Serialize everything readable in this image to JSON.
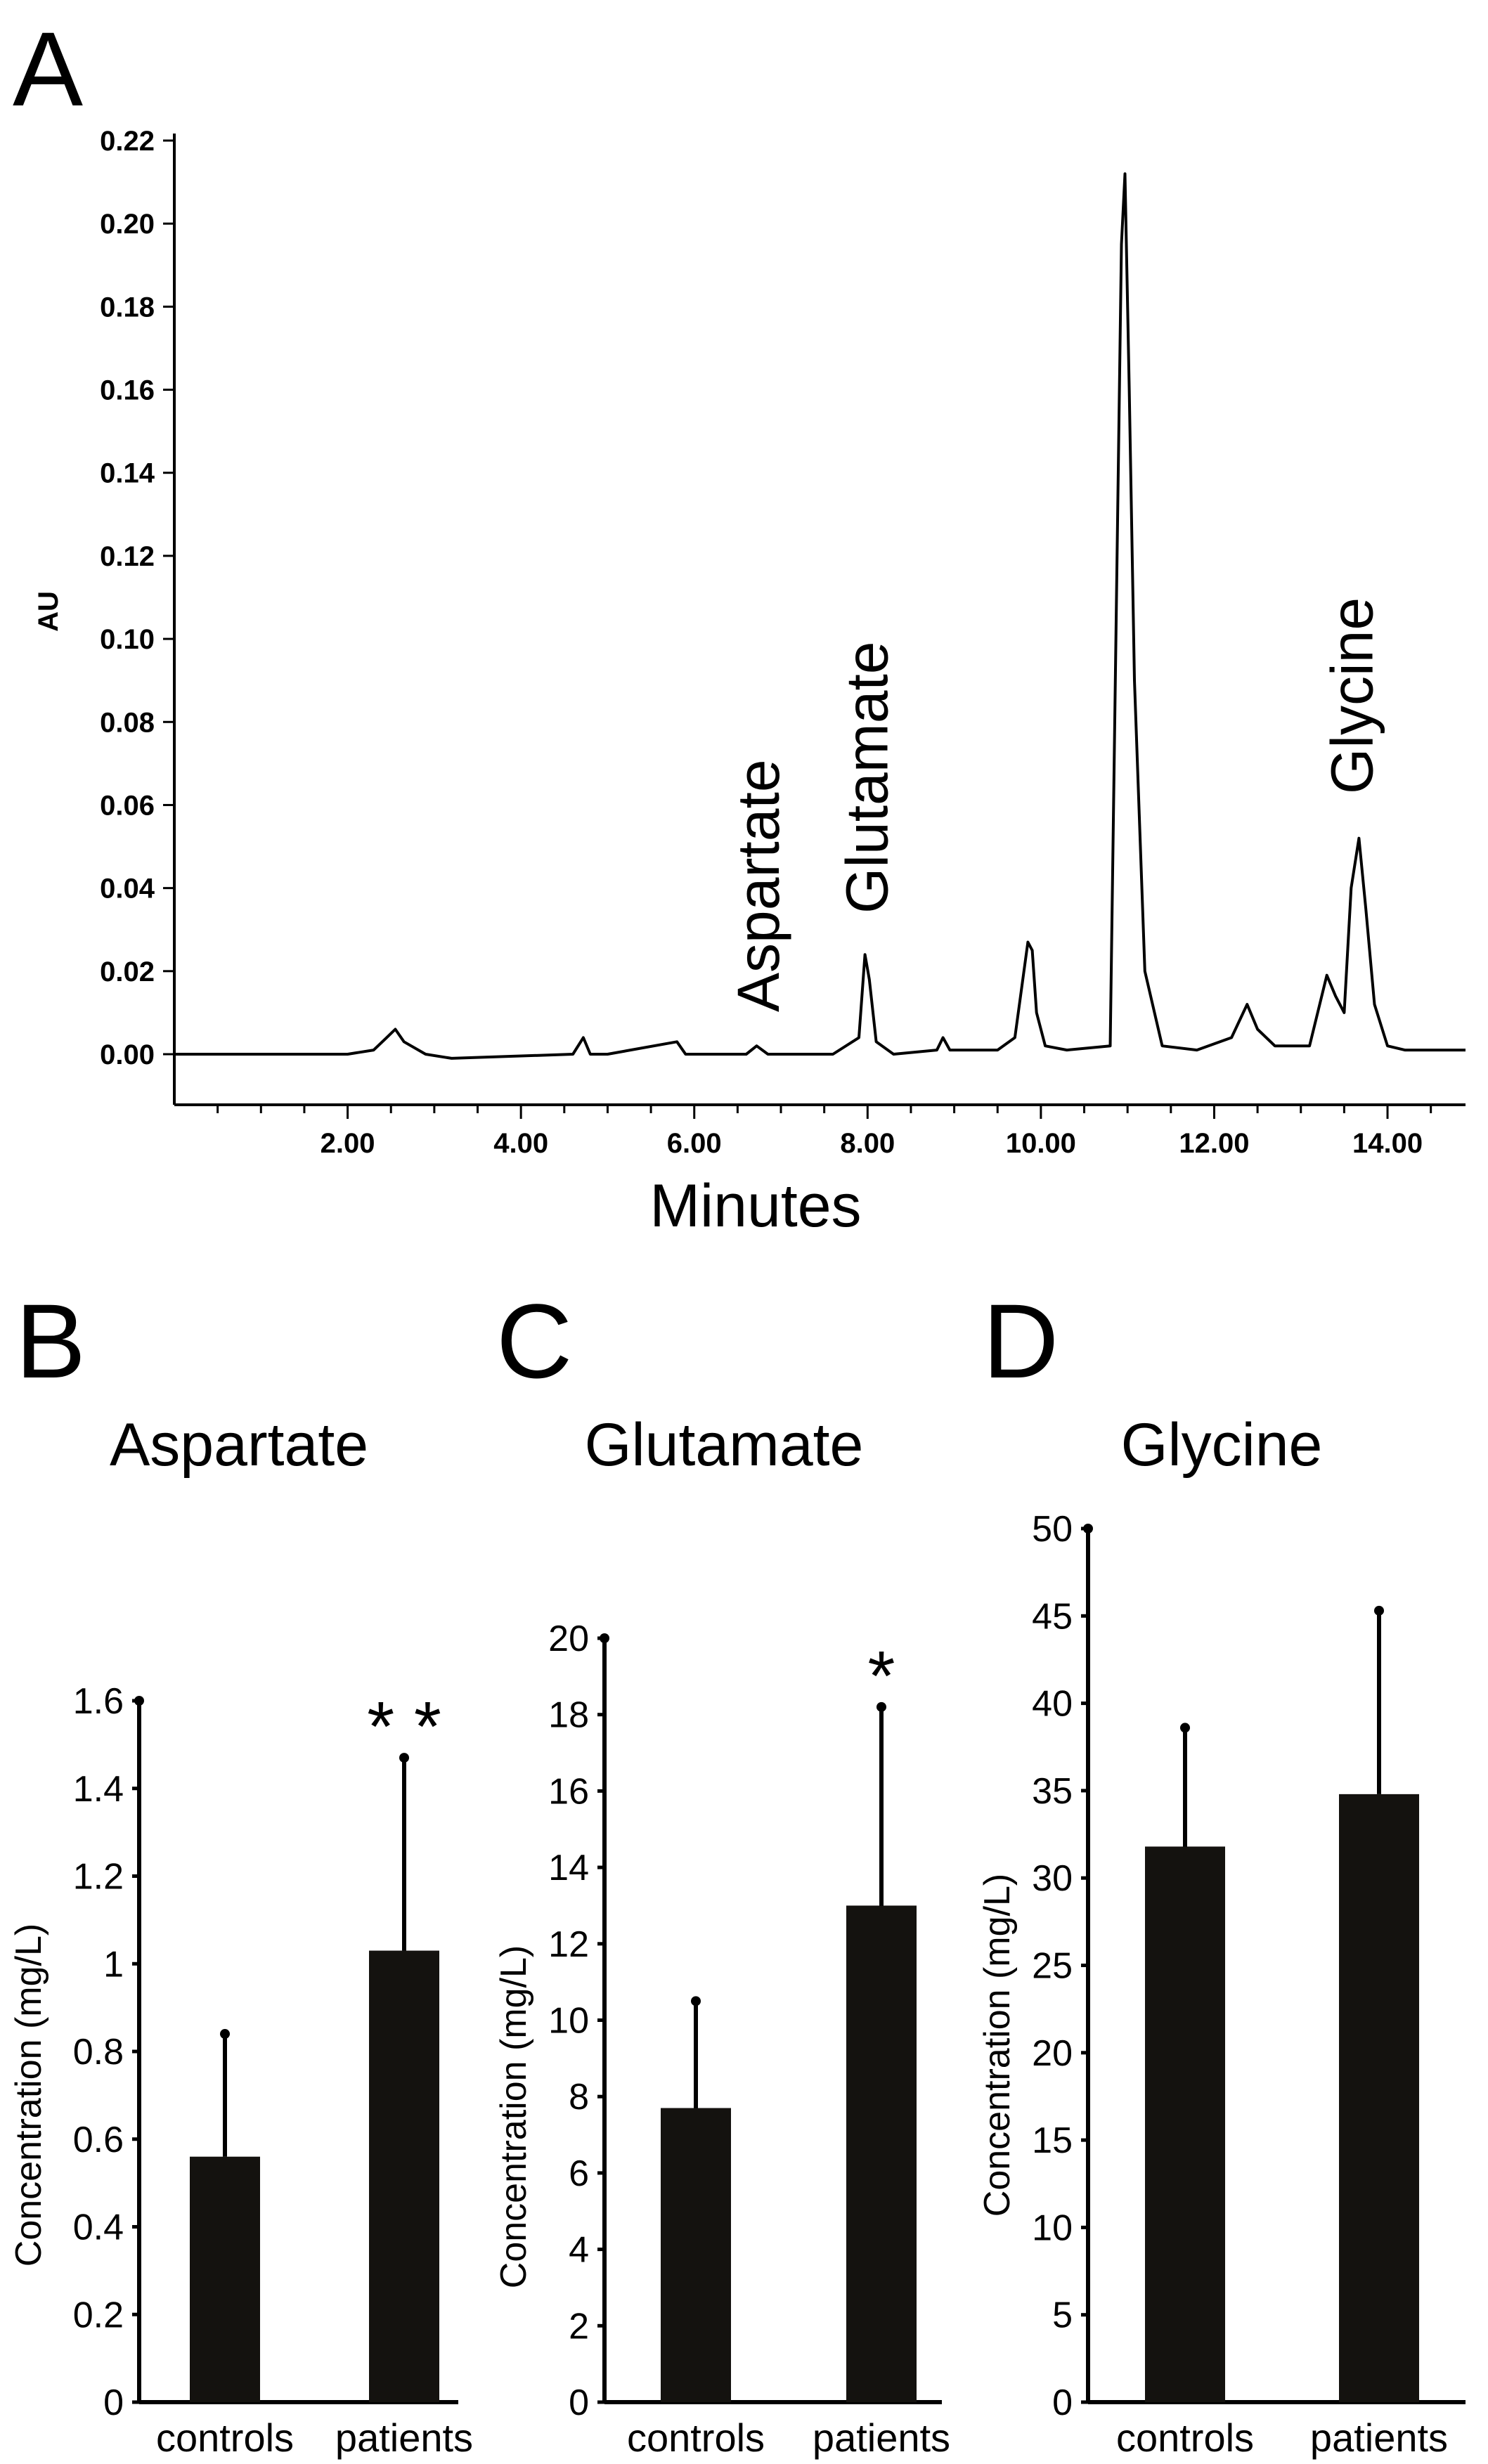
{
  "panels": {
    "A": {
      "letter": "A",
      "chart_data": {
        "type": "line",
        "xlabel": "Minutes",
        "ylabel": "AU",
        "xlim": [
          0.0,
          14.9
        ],
        "ylim": [
          -0.012,
          0.225
        ],
        "x_ticks": [
          "2.00",
          "4.00",
          "6.00",
          "8.00",
          "10.00",
          "12.00",
          "14.00"
        ],
        "y_ticks": [
          "0.00",
          "0.02",
          "0.04",
          "0.06",
          "0.08",
          "0.10",
          "0.12",
          "0.14",
          "0.16",
          "0.18",
          "0.20",
          "0.22"
        ],
        "annotations": [
          {
            "text": "Aspartate",
            "x": 6.75
          },
          {
            "text": "Glutamate",
            "x": 8.0
          },
          {
            "text": "Glycine",
            "x": 13.6
          }
        ],
        "series": [
          {
            "x": [
              0.0,
              2.0,
              2.3,
              2.45,
              2.55,
              2.65,
              2.9,
              3.2,
              4.6,
              4.72,
              4.8,
              5.0,
              5.8,
              5.9,
              6.0,
              6.6,
              6.72,
              6.85,
              7.6,
              7.9,
              7.97,
              8.02,
              8.1,
              8.3,
              8.8,
              8.87,
              8.95,
              9.5,
              9.7,
              9.85,
              9.9,
              9.95,
              10.05,
              10.3,
              10.8,
              10.93,
              10.97,
              11.02,
              11.08,
              11.2,
              11.4,
              11.8,
              12.2,
              12.38,
              12.5,
              12.7,
              13.1,
              13.3,
              13.4,
              13.5,
              13.58,
              13.67,
              13.75,
              13.85,
              14.0,
              14.2,
              14.9
            ],
            "y": [
              0.0,
              0.0,
              0.001,
              0.004,
              0.006,
              0.003,
              0.0,
              -0.001,
              0.0,
              0.004,
              0.0,
              0.0,
              0.003,
              0.0,
              0.0,
              0.0,
              0.002,
              0.0,
              0.0,
              0.004,
              0.024,
              0.018,
              0.003,
              0.0,
              0.001,
              0.004,
              0.001,
              0.001,
              0.004,
              0.027,
              0.025,
              0.01,
              0.002,
              0.001,
              0.002,
              0.195,
              0.212,
              0.16,
              0.09,
              0.02,
              0.002,
              0.001,
              0.004,
              0.012,
              0.006,
              0.002,
              0.002,
              0.019,
              0.014,
              0.01,
              0.04,
              0.052,
              0.035,
              0.012,
              0.002,
              0.001,
              0.001
            ]
          }
        ]
      }
    },
    "B": {
      "letter": "B",
      "chart_data": {
        "type": "bar",
        "title": "Aspartate",
        "ylabel": "Concentration (mg/L)",
        "categories": [
          "controls",
          "patients"
        ],
        "values": [
          0.56,
          1.03
        ],
        "error_upper": [
          0.84,
          1.47
        ],
        "ylim": [
          0,
          1.6
        ],
        "y_ticks": [
          "0",
          "0.2",
          "0.4",
          "0.6",
          "0.8",
          "1",
          "1.2",
          "1.4",
          "1.6"
        ],
        "significance": [
          "",
          "**"
        ]
      }
    },
    "C": {
      "letter": "C",
      "chart_data": {
        "type": "bar",
        "title": "Glutamate",
        "ylabel": "Concentration (mg/L)",
        "categories": [
          "controls",
          "patients"
        ],
        "values": [
          7.7,
          13.0
        ],
        "error_upper": [
          10.5,
          18.2
        ],
        "ylim": [
          0,
          20
        ],
        "y_ticks": [
          "0",
          "2",
          "4",
          "6",
          "8",
          "10",
          "12",
          "14",
          "16",
          "18",
          "20"
        ],
        "significance": [
          "",
          "*"
        ]
      }
    },
    "D": {
      "letter": "D",
      "chart_data": {
        "type": "bar",
        "title": "Glycine",
        "ylabel": "Concentration (mg/L)",
        "categories": [
          "controls",
          "patients"
        ],
        "values": [
          31.8,
          34.8
        ],
        "error_upper": [
          38.6,
          45.3
        ],
        "ylim": [
          0,
          50
        ],
        "y_ticks": [
          "0",
          "5",
          "10",
          "15",
          "20",
          "25",
          "30",
          "35",
          "40",
          "45",
          "50"
        ],
        "significance": [
          "",
          ""
        ]
      }
    }
  }
}
